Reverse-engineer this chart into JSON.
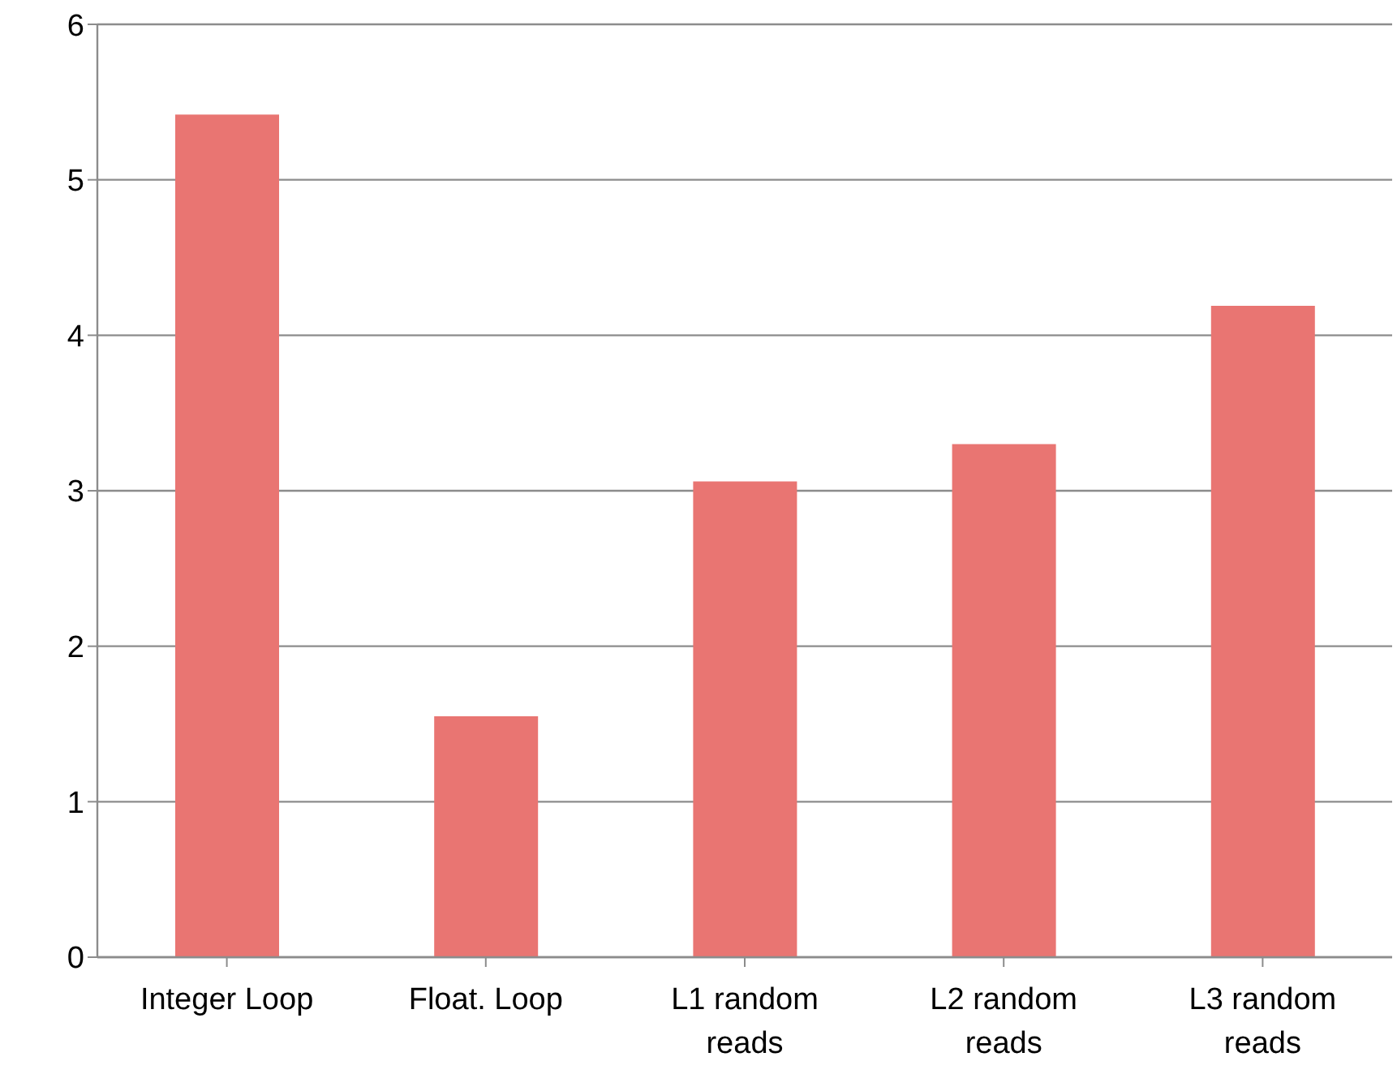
{
  "chart_data": {
    "type": "bar",
    "categories": [
      "Integer Loop",
      "Float. Loop",
      "L1 random reads",
      "L2 random reads",
      "L3 random reads"
    ],
    "values": [
      5.42,
      1.55,
      3.06,
      3.3,
      4.19
    ],
    "color": "#e97572",
    "ylim": [
      0,
      6
    ],
    "yticks": [
      0,
      1,
      2,
      3,
      4,
      5,
      6
    ],
    "grid": "y"
  }
}
